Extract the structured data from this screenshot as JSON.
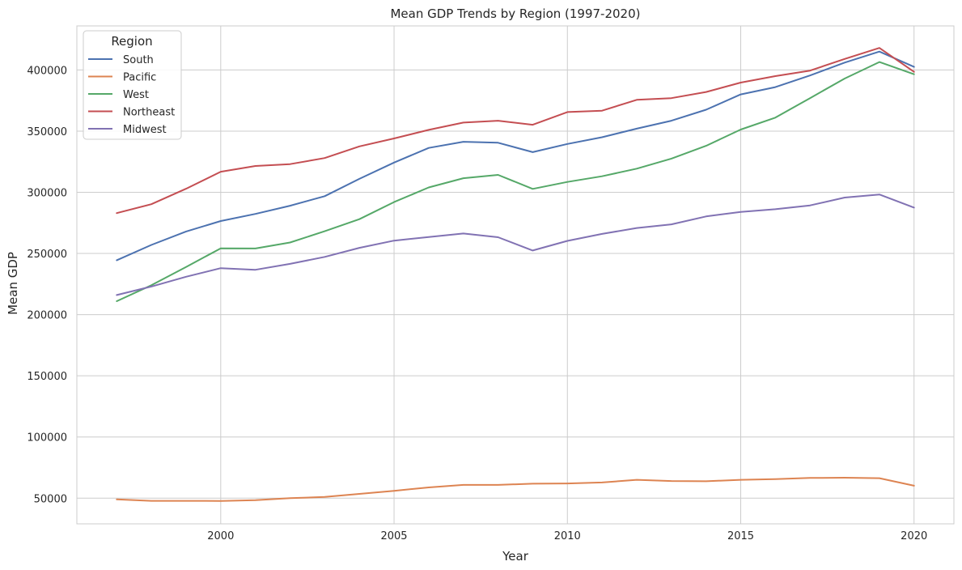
{
  "chart_data": {
    "type": "line",
    "title": "Mean GDP Trends by Region (1997-2020)",
    "xlabel": "Year",
    "ylabel": "Mean GDP",
    "x": [
      1997,
      1998,
      1999,
      2000,
      2001,
      2002,
      2003,
      2004,
      2005,
      2006,
      2007,
      2008,
      2009,
      2010,
      2011,
      2012,
      2013,
      2014,
      2015,
      2016,
      2017,
      2018,
      2019,
      2020
    ],
    "xlim": [
      1995.85,
      2021.15
    ],
    "ylim": [
      29000,
      436000
    ],
    "x_ticks": [
      2000,
      2005,
      2010,
      2015,
      2020
    ],
    "y_ticks": [
      50000,
      100000,
      150000,
      200000,
      250000,
      300000,
      350000,
      400000
    ],
    "grid": true,
    "legend": {
      "title": "Region",
      "placement": "top-left"
    },
    "series": [
      {
        "name": "South",
        "color": "#4c72b0",
        "values": [
          244500,
          257000,
          268000,
          276500,
          282300,
          289000,
          296800,
          311000,
          324300,
          336300,
          341300,
          340500,
          332800,
          339500,
          345000,
          352000,
          358500,
          367500,
          380000,
          386000,
          395500,
          406000,
          415000,
          402500
        ]
      },
      {
        "name": "Pacific",
        "color": "#dd8452",
        "values": [
          49000,
          47800,
          47800,
          47700,
          48300,
          50000,
          51000,
          53500,
          56000,
          58800,
          60800,
          60800,
          61800,
          62000,
          62800,
          65000,
          64000,
          63800,
          65000,
          65600,
          66500,
          66700,
          66300,
          60200
        ]
      },
      {
        "name": "West",
        "color": "#55a868",
        "values": [
          211000,
          224000,
          239000,
          254200,
          254100,
          259000,
          268200,
          278000,
          292000,
          304000,
          311500,
          314200,
          302800,
          308500,
          313100,
          319300,
          327500,
          338000,
          351300,
          361000,
          377000,
          393000,
          406500,
          396500
        ]
      },
      {
        "name": "Northeast",
        "color": "#c44e52",
        "values": [
          283000,
          290300,
          302900,
          316800,
          321500,
          323000,
          328000,
          337500,
          344000,
          351000,
          357000,
          358500,
          355200,
          365600,
          366700,
          375600,
          377000,
          382000,
          389700,
          395000,
          399500,
          409000,
          418000,
          398500
        ]
      },
      {
        "name": "Midwest",
        "color": "#8172b3",
        "values": [
          216000,
          223000,
          231000,
          238000,
          236700,
          241500,
          247200,
          254600,
          260500,
          263500,
          266300,
          263300,
          252400,
          260300,
          266000,
          270800,
          273800,
          280300,
          284000,
          286200,
          289300,
          295700,
          298200,
          287500
        ]
      }
    ]
  }
}
